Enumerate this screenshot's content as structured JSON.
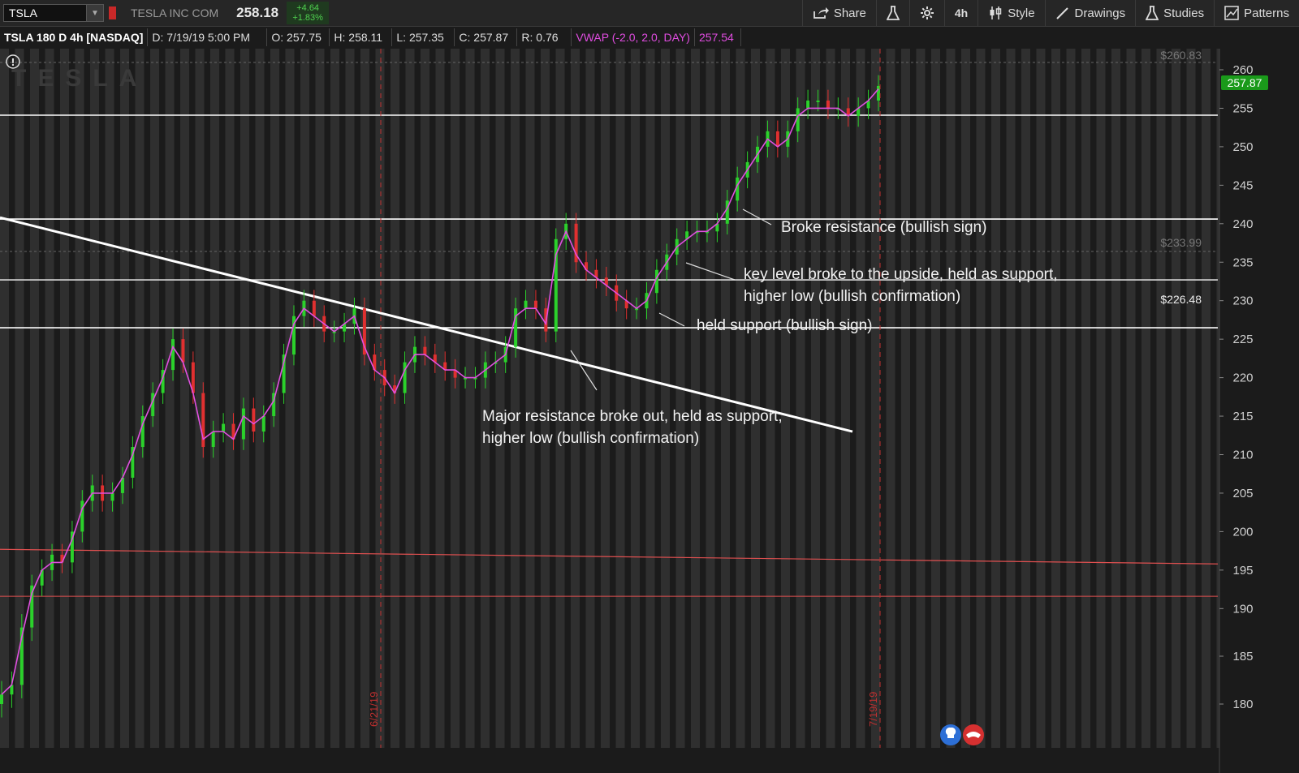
{
  "toolbar": {
    "symbol": "TSLA",
    "company": "TESLA INC COM",
    "last": "258.18",
    "change": "+4.64",
    "change_pct": "+1.83%",
    "buttons": {
      "share": "Share",
      "timeframe": "4h",
      "style": "Style",
      "drawings": "Drawings",
      "studies": "Studies",
      "patterns": "Patterns"
    }
  },
  "infobar": {
    "title": "TSLA 180 D 4h [NASDAQ]",
    "date": "D: 7/19/19 5:00 PM",
    "open": "O: 257.75",
    "high": "H: 258.11",
    "low": "L: 257.35",
    "close": "C: 257.87",
    "range": "R: 0.76",
    "vwap_label": "VWAP (-2.0, 2.0, DAY)",
    "vwap_value": "257.54"
  },
  "chart_data": {
    "type": "line",
    "watermark": "TESLA",
    "y_axis": {
      "ticks": [
        260,
        255,
        250,
        245,
        240,
        235,
        230,
        225,
        220,
        215,
        210,
        205,
        200,
        195,
        190,
        185,
        180
      ],
      "range": [
        175.5,
        262.6
      ]
    },
    "x_markers": [
      "6/21/19",
      "7/19/19"
    ],
    "current_price_tag": "257.87",
    "reference_labels": [
      "$260.83",
      "$233.99",
      "$226.48"
    ],
    "horizontal_levels": [
      {
        "value": 254.1,
        "color": "#ffffff"
      },
      {
        "value": 240.6,
        "color": "#ffffff"
      },
      {
        "value": 232.7,
        "color": "#d8d8d8"
      },
      {
        "value": 226.48,
        "color": "#ffffff"
      },
      {
        "value": 191.6,
        "color": "#e05050"
      }
    ],
    "sloped_levels": [
      {
        "from": {
          "x": 0,
          "y": 240.8
        },
        "to": {
          "x": 0.7,
          "y": 213.0
        },
        "color": "#ffffff"
      },
      {
        "from": {
          "x": 0,
          "y": 197.7
        },
        "to": {
          "x": 1.0,
          "y": 195.8
        },
        "color": "#e05050"
      }
    ],
    "price_series": {
      "name": "TSLA",
      "values": [
        181,
        182,
        188,
        193,
        195,
        197,
        196,
        200,
        204,
        206,
        204,
        205,
        207,
        211,
        215,
        218,
        221,
        225,
        222,
        218,
        211,
        213,
        214,
        212,
        216,
        213,
        215,
        218,
        223,
        228,
        230,
        228,
        226,
        226,
        227,
        229,
        223,
        221,
        219,
        218,
        222,
        224,
        223,
        222,
        221,
        220,
        220,
        220,
        222,
        222,
        224,
        229,
        230,
        229,
        226,
        238,
        240,
        235,
        234,
        233,
        232,
        230,
        229,
        229,
        231,
        234,
        236,
        238,
        239,
        239,
        239,
        240,
        243,
        246,
        248,
        250,
        252,
        250,
        252,
        255,
        256,
        256,
        255,
        255,
        254,
        255,
        256,
        257.9
      ]
    },
    "vwap_series": {
      "name": "VWAP",
      "values": [
        181,
        182,
        187,
        192,
        195,
        196,
        196,
        199,
        203,
        205,
        205,
        205,
        207,
        210,
        214,
        217,
        220,
        224,
        222,
        218,
        212,
        213,
        213,
        212,
        215,
        214,
        215,
        217,
        222,
        227,
        229,
        228,
        227,
        226,
        227,
        228,
        224,
        221,
        220,
        218,
        221,
        223,
        223,
        222,
        221,
        221,
        220,
        220,
        221,
        222,
        223,
        228,
        229,
        229,
        227,
        236,
        239,
        236,
        234,
        233,
        232,
        231,
        230,
        229,
        230,
        233,
        235,
        237,
        238,
        239,
        239,
        240,
        242,
        245,
        247,
        249,
        251,
        250,
        251,
        254,
        255,
        255,
        255,
        255,
        254,
        255,
        256,
        257.5
      ]
    },
    "annotations": [
      {
        "text": "Broke resistance (bullish sign)"
      },
      {
        "text": "key level broke to the upside, held as support,"
      },
      {
        "text": "higher low (bullish confirmation)"
      },
      {
        "text": "held support (bullish sign)"
      },
      {
        "text": "Major resistance broke out, held as support,"
      },
      {
        "text": "higher low (bullish confirmation)"
      }
    ],
    "colors": {
      "background": "#1b1b1b",
      "band": "#2f2f2f",
      "up": "#2bd12b",
      "down": "#e03030",
      "vwap": "#e050e0",
      "price_tag": "#1a9a1a"
    }
  }
}
